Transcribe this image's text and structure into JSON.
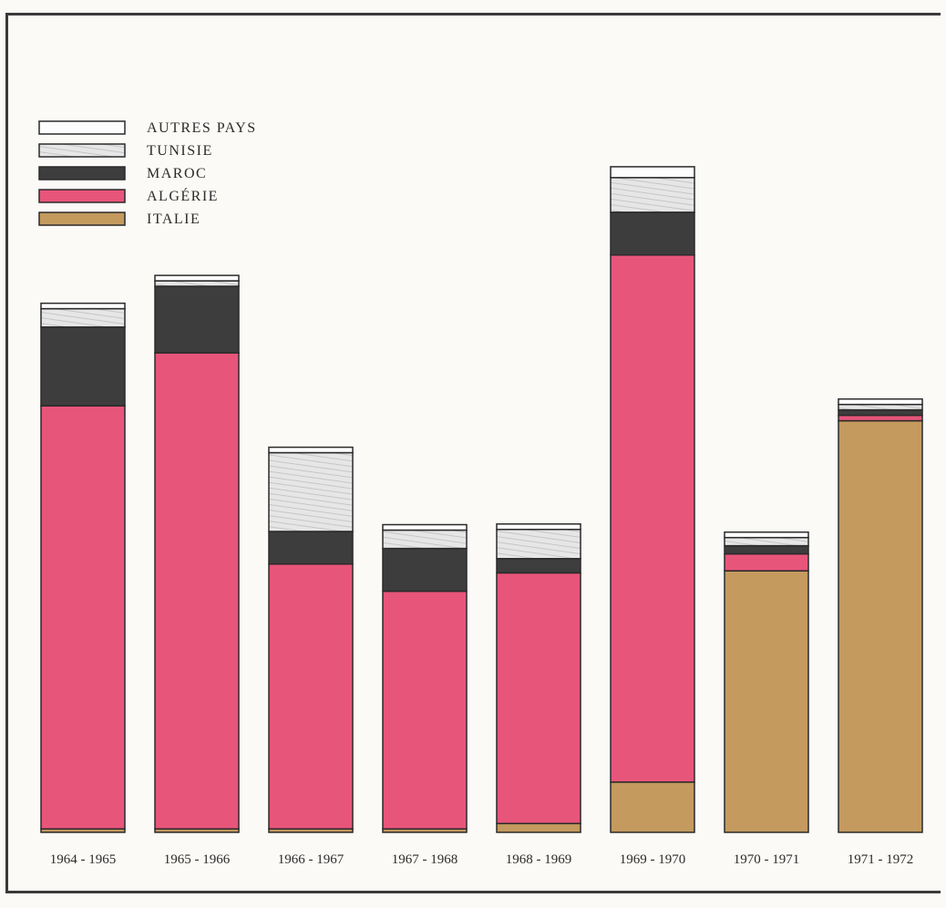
{
  "chart_data": {
    "type": "bar",
    "stacked": true,
    "title": "",
    "xlabel": "",
    "ylabel": "",
    "ylim": [
      0,
      100
    ],
    "y_axis_printed": false,
    "grid": false,
    "legend_placement": "top-left",
    "categories": [
      "1964 - 1965",
      "1965 - 1966",
      "1966 - 1967",
      "1967 - 1968",
      "1968 - 1969",
      "1969 - 1970",
      "1970 - 1971",
      "1971 - 1972"
    ],
    "series": [
      {
        "name": "ITALIE",
        "color": "#c49a5e",
        "values": [
          0.5,
          0.5,
          0.5,
          0.5,
          1.3,
          7.4,
          38.5,
          60.6
        ]
      },
      {
        "name": "ALGÉRIE",
        "color": "#e8557a",
        "values": [
          62.3,
          70.1,
          39.0,
          35.0,
          36.9,
          77.6,
          2.5,
          0.8
        ]
      },
      {
        "name": "MAROC",
        "color": "#3d3d3d",
        "values": [
          11.6,
          9.8,
          4.8,
          6.3,
          2.1,
          6.3,
          1.2,
          0.8
        ]
      },
      {
        "name": "TUNISIE",
        "color": "#e2e2e2",
        "values": [
          2.7,
          0.8,
          11.6,
          2.7,
          4.3,
          5.1,
          1.2,
          0.8
        ]
      },
      {
        "name": "AUTRES PAYS",
        "color": "#fdfdfd",
        "values": [
          0.8,
          0.8,
          0.8,
          0.8,
          0.8,
          1.6,
          0.8,
          0.8
        ]
      }
    ],
    "legend_order": [
      "AUTRES PAYS",
      "TUNISIE",
      "MAROC",
      "ALGÉRIE",
      "ITALIE"
    ]
  }
}
